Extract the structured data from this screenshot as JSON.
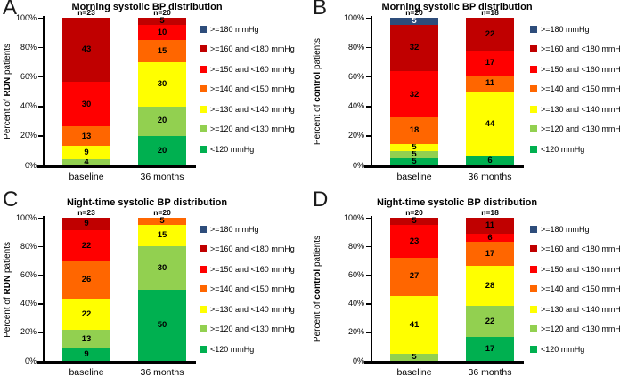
{
  "figure": {
    "background": "#ffffff",
    "panel_letters": [
      "A",
      "B",
      "C",
      "D"
    ]
  },
  "legend": [
    {
      "label": ">=180 mmHg",
      "color": "#2E4D7B",
      "text_color": "#ffffff"
    },
    {
      "label": ">=160 and <180 mmHg",
      "color": "#C00000",
      "text_color": "#000000"
    },
    {
      "label": ">=150 and <160 mmHg",
      "color": "#FF0000",
      "text_color": "#000000"
    },
    {
      "label": ">=140 and <150 mmHg",
      "color": "#FF6600",
      "text_color": "#000000"
    },
    {
      "label": ">=130 and <140 mmHg",
      "color": "#FFFF00",
      "text_color": "#000000"
    },
    {
      "label": ">=120 and <130 mmHg",
      "color": "#92D050",
      "text_color": "#000000"
    },
    {
      "label": "<120 mmHg",
      "color": "#00B050",
      "text_color": "#000000"
    }
  ],
  "chart_data": [
    {
      "type": "bar",
      "stacked": true,
      "panel": "A",
      "title": "Morning systolic BP distribution",
      "ylabel": "Percent of RDN patients",
      "ylabel_parts": [
        "Percent of ",
        "RDN",
        " patients"
      ],
      "categories": [
        "baseline",
        "36 months"
      ],
      "n_labels": [
        "n=23",
        "n=20"
      ],
      "yticks": [
        "0%",
        "20%",
        "40%",
        "60%",
        "80%",
        "100%"
      ],
      "ylim": [
        0,
        100
      ],
      "grid": false,
      "legend_position": "right",
      "series": [
        {
          "name": ">=180 mmHg",
          "values": [
            0,
            0
          ]
        },
        {
          "name": ">=160 and <180 mmHg",
          "values": [
            43,
            5
          ]
        },
        {
          "name": ">=150 and <160 mmHg",
          "values": [
            30,
            10
          ]
        },
        {
          "name": ">=140 and <150 mmHg",
          "values": [
            13,
            15
          ]
        },
        {
          "name": ">=130 and <140 mmHg",
          "values": [
            9,
            30
          ]
        },
        {
          "name": ">=120 and <130 mmHg",
          "values": [
            4,
            20
          ]
        },
        {
          "name": "<120 mmHg",
          "values": [
            0,
            20
          ]
        }
      ]
    },
    {
      "type": "bar",
      "stacked": true,
      "panel": "B",
      "title": "Morning systolic BP distribution",
      "ylabel": "Percent of control patients",
      "ylabel_parts": [
        "Percent of ",
        "control",
        " patients"
      ],
      "categories": [
        "baseline",
        "36 months"
      ],
      "n_labels": [
        "n=20",
        "n=18"
      ],
      "yticks": [
        "0%",
        "20%",
        "40%",
        "60%",
        "80%",
        "100%"
      ],
      "ylim": [
        0,
        100
      ],
      "grid": false,
      "legend_position": "right",
      "series": [
        {
          "name": ">=180 mmHg",
          "values": [
            5,
            0
          ]
        },
        {
          "name": ">=160 and <180 mmHg",
          "values": [
            32,
            22
          ]
        },
        {
          "name": ">=150 and <160 mmHg",
          "values": [
            32,
            17
          ]
        },
        {
          "name": ">=140 and <150 mmHg",
          "values": [
            18,
            11
          ]
        },
        {
          "name": ">=130 and <140 mmHg",
          "values": [
            5,
            44
          ]
        },
        {
          "name": ">=120 and <130 mmHg",
          "values": [
            5,
            0
          ]
        },
        {
          "name": "<120 mmHg",
          "values": [
            5,
            6
          ]
        }
      ]
    },
    {
      "type": "bar",
      "stacked": true,
      "panel": "C",
      "title": "Night-time systolic BP distribution",
      "ylabel": "Percent of RDN patients",
      "ylabel_parts": [
        "Percent of ",
        "RDN",
        " patients"
      ],
      "categories": [
        "baseline",
        "36 months"
      ],
      "n_labels": [
        "n=23",
        "n=20"
      ],
      "yticks": [
        "0%",
        "20%",
        "40%",
        "60%",
        "80%",
        "100%"
      ],
      "ylim": [
        0,
        100
      ],
      "grid": false,
      "legend_position": "right",
      "series": [
        {
          "name": ">=180 mmHg",
          "values": [
            0,
            0
          ]
        },
        {
          "name": ">=160 and <180 mmHg",
          "values": [
            9,
            0
          ]
        },
        {
          "name": ">=150 and <160 mmHg",
          "values": [
            22,
            0
          ]
        },
        {
          "name": ">=140 and <150 mmHg",
          "values": [
            26,
            5
          ]
        },
        {
          "name": ">=130 and <140 mmHg",
          "values": [
            22,
            15
          ]
        },
        {
          "name": ">=120 and <130 mmHg",
          "values": [
            13,
            30
          ]
        },
        {
          "name": "<120 mmHg",
          "values": [
            9,
            50
          ]
        }
      ]
    },
    {
      "type": "bar",
      "stacked": true,
      "panel": "D",
      "title": "Night-time systolic BP distribution",
      "ylabel": "Percent of control patients",
      "ylabel_parts": [
        "Percent of ",
        "control",
        " patients"
      ],
      "categories": [
        "baseline",
        "36 months"
      ],
      "n_labels": [
        "n=20",
        "n=18"
      ],
      "yticks": [
        "0%",
        "20%",
        "40%",
        "60%",
        "80%",
        "100%"
      ],
      "ylim": [
        0,
        100
      ],
      "grid": false,
      "legend_position": "right",
      "series": [
        {
          "name": ">=180 mmHg",
          "values": [
            0,
            0
          ]
        },
        {
          "name": ">=160 and <180 mmHg",
          "values": [
            5,
            11
          ]
        },
        {
          "name": ">=150 and <160 mmHg",
          "values": [
            23,
            6
          ]
        },
        {
          "name": ">=140 and <150 mmHg",
          "values": [
            27,
            17
          ]
        },
        {
          "name": ">=130 and <140 mmHg",
          "values": [
            41,
            28
          ]
        },
        {
          "name": ">=120 and <130 mmHg",
          "values": [
            5,
            22
          ]
        },
        {
          "name": "<120 mmHg",
          "values": [
            0,
            17
          ]
        }
      ]
    }
  ]
}
